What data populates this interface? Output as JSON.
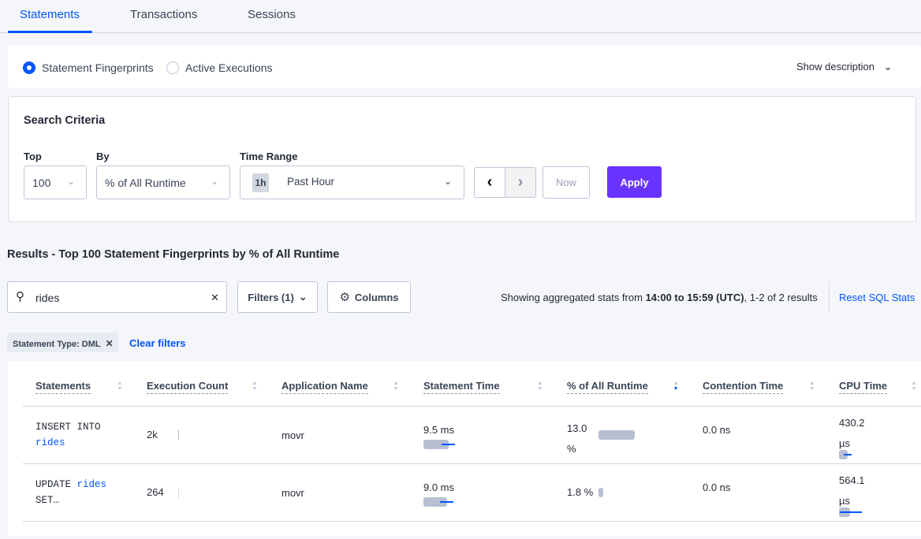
{
  "tabs": [
    {
      "label": "Statements",
      "active": true
    },
    {
      "label": "Transactions"
    },
    {
      "label": "Sessions"
    }
  ],
  "view_toggle": {
    "options": [
      "Statement Fingerprints",
      "Active Executions"
    ],
    "selected": "Statement Fingerprints",
    "show_description": "Show description"
  },
  "search_criteria": {
    "title": "Search Criteria",
    "top_label": "Top",
    "top_value": "100",
    "by_label": "By",
    "by_value": "% of All Runtime",
    "time_range_label": "Time Range",
    "time_badge": "1h",
    "time_value": "Past Hour",
    "now_label": "Now",
    "apply_label": "Apply"
  },
  "results_title": "Results - Top 100 Statement Fingerprints by % of All Runtime",
  "toolbar": {
    "search_value": "rides",
    "filters_label": "Filters (1)",
    "columns_label": "Columns",
    "summary_prefix": "Showing aggregated stats from ",
    "summary_range": "14:00 to 15:59 (UTC)",
    "summary_suffix": ", 1-2 of 2 results",
    "reset_label": "Reset SQL Stats"
  },
  "filters": {
    "chip": "Statement Type: DML",
    "clear": "Clear filters"
  },
  "table": {
    "columns": [
      "Statements",
      "Execution Count",
      "Application Name",
      "Statement Time",
      "% of All Runtime",
      "Contention Time",
      "CPU Time"
    ],
    "sorted_by": "% of All Runtime",
    "rows": [
      {
        "stmt_a": "INSERT INTO",
        "stmt_b": "rides",
        "stmt_c": "",
        "exec": "2k",
        "app": "movr",
        "time": "9.5 ms",
        "pct": "13.0 %",
        "pct_value": 13.0,
        "contention": "0.0 ns",
        "cpu": "430.2 µs"
      },
      {
        "stmt_a": "UPDATE ",
        "stmt_b": "rides",
        "stmt_c": "SET…",
        "exec": "264",
        "app": "movr",
        "time": "9.0 ms",
        "pct": "1.8 %",
        "pct_value": 1.8,
        "contention": "0.0 ns",
        "cpu": "564.1 µs"
      }
    ]
  },
  "colors": {
    "accent": "#0055ff",
    "apply": "#6933ff",
    "bar": "#b8bfd1"
  }
}
